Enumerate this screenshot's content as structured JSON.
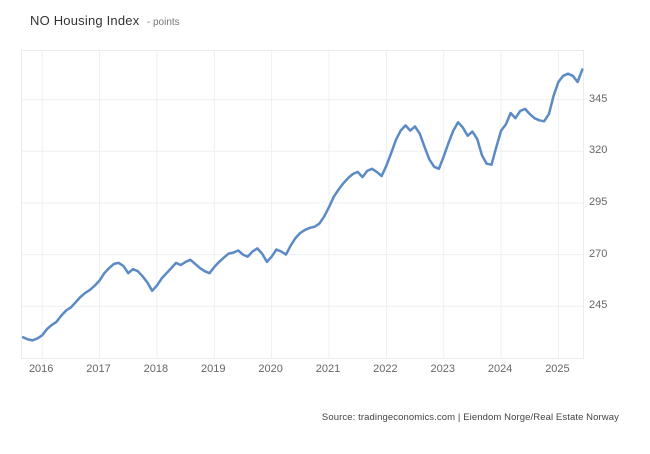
{
  "header": {
    "title": "NO Housing Index",
    "subtitle": "- points"
  },
  "source_note": "Source: tradingeconomics.com | Eiendom Norge/Real Estate Norway",
  "colors": {
    "line": "#5b8ac5",
    "grid": "#efefef",
    "plot_border": "#ececec",
    "title_text": "#333333",
    "axis_text": "#666666",
    "source_text": "#444444",
    "background": "#ffffff"
  },
  "chart_data": {
    "type": "line",
    "title": "NO Housing Index",
    "ylabel": "points",
    "legend": false,
    "grid": true,
    "ylim": [
      220,
      368.5
    ],
    "y_ticks": [
      245,
      270,
      295,
      320,
      345
    ],
    "x_ticks": [
      "2016",
      "2017",
      "2018",
      "2019",
      "2020",
      "2021",
      "2022",
      "2023",
      "2024",
      "2025"
    ],
    "x_range_months": [
      "2015-09",
      "2025-06"
    ],
    "x": [
      "2015-09",
      "2015-10",
      "2015-11",
      "2015-12",
      "2016-01",
      "2016-02",
      "2016-03",
      "2016-04",
      "2016-05",
      "2016-06",
      "2016-07",
      "2016-08",
      "2016-09",
      "2016-10",
      "2016-11",
      "2016-12",
      "2017-01",
      "2017-02",
      "2017-03",
      "2017-04",
      "2017-05",
      "2017-06",
      "2017-07",
      "2017-08",
      "2017-09",
      "2017-10",
      "2017-11",
      "2017-12",
      "2018-01",
      "2018-02",
      "2018-03",
      "2018-04",
      "2018-05",
      "2018-06",
      "2018-07",
      "2018-08",
      "2018-09",
      "2018-10",
      "2018-11",
      "2018-12",
      "2019-01",
      "2019-02",
      "2019-03",
      "2019-04",
      "2019-05",
      "2019-06",
      "2019-07",
      "2019-08",
      "2019-09",
      "2019-10",
      "2019-11",
      "2019-12",
      "2020-01",
      "2020-02",
      "2020-03",
      "2020-04",
      "2020-05",
      "2020-06",
      "2020-07",
      "2020-08",
      "2020-09",
      "2020-10",
      "2020-11",
      "2020-12",
      "2021-01",
      "2021-02",
      "2021-03",
      "2021-04",
      "2021-05",
      "2021-06",
      "2021-07",
      "2021-08",
      "2021-09",
      "2021-10",
      "2021-11",
      "2021-12",
      "2022-01",
      "2022-02",
      "2022-03",
      "2022-04",
      "2022-05",
      "2022-06",
      "2022-07",
      "2022-08",
      "2022-09",
      "2022-10",
      "2022-11",
      "2022-12",
      "2023-01",
      "2023-02",
      "2023-03",
      "2023-04",
      "2023-05",
      "2023-06",
      "2023-07",
      "2023-08",
      "2023-09",
      "2023-10",
      "2023-11",
      "2023-12",
      "2024-01",
      "2024-02",
      "2024-03",
      "2024-04",
      "2024-05",
      "2024-06",
      "2024-07",
      "2024-08",
      "2024-09",
      "2024-10",
      "2024-11",
      "2024-12",
      "2025-01",
      "2025-02",
      "2025-03",
      "2025-04",
      "2025-05",
      "2025-06"
    ],
    "values": [
      230,
      229,
      228.5,
      229.5,
      231,
      234,
      236,
      237.5,
      240.5,
      243,
      244.5,
      247,
      249.5,
      251.5,
      253,
      255,
      257.5,
      261,
      263.5,
      265.5,
      266,
      264.5,
      261,
      263,
      262,
      259.5,
      256.5,
      252.5,
      255,
      258.5,
      261,
      263.5,
      266,
      265,
      266.5,
      267.5,
      265.5,
      263.5,
      262,
      261,
      264,
      266.5,
      268.5,
      270.5,
      271,
      272,
      270,
      269,
      271.5,
      273,
      270.5,
      266.5,
      269,
      272.5,
      271.5,
      270,
      274.5,
      278,
      280.5,
      282,
      283,
      283.5,
      285,
      288.5,
      293,
      298,
      301.5,
      304.5,
      307,
      309,
      310,
      307.5,
      310.5,
      311.5,
      310,
      308,
      313,
      319,
      325.5,
      330,
      332.5,
      330,
      332,
      328.5,
      322,
      316,
      312.5,
      311.5,
      317.5,
      324,
      330,
      334,
      331.5,
      327.5,
      329.5,
      326,
      318,
      314,
      313.5,
      322,
      330,
      333,
      338.5,
      336,
      339.5,
      340.5,
      338,
      336,
      335,
      334.5,
      338,
      347,
      353.5,
      356.5,
      357.5,
      356.5,
      353.5,
      359.5
    ]
  }
}
